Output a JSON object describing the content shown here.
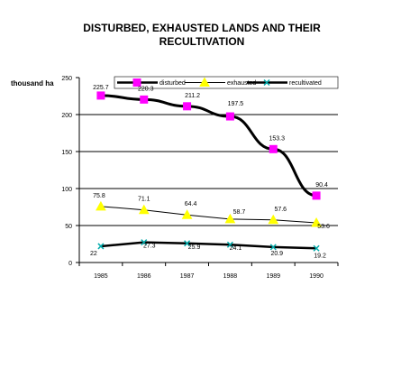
{
  "chart_data": {
    "type": "line",
    "title_lines": [
      "DISTURBED, EXHAUSTED LANDS AND THEIR",
      "RECULTIVATION"
    ],
    "ylabel": "thousand ha",
    "xlabel": "",
    "categories": [
      "1985",
      "1986",
      "1987",
      "1988",
      "1989",
      "1990"
    ],
    "ylim": [
      0,
      250
    ],
    "yticks": [
      "0",
      "50",
      "100",
      "150",
      "200",
      "250"
    ],
    "gridlines": [
      50,
      100,
      150,
      200
    ],
    "legend_position": "top",
    "series": [
      {
        "name": "disturbed",
        "values": [
          225.7,
          220.3,
          211.2,
          197.5,
          153.3,
          90.4
        ],
        "labels": [
          "225.7",
          "220.3",
          "211.2",
          "197.5",
          "153.3",
          "90.4"
        ],
        "color": "#000000",
        "marker_color": "#ff00ff",
        "marker": "square"
      },
      {
        "name": "exhausted",
        "values": [
          75.8,
          71.1,
          64.4,
          58.7,
          57.6,
          53.6
        ],
        "labels": [
          "75.8",
          "71.1",
          "64.4",
          "58.7",
          "57.6",
          "53.6"
        ],
        "color": "#000000",
        "marker_color": "#ffff00",
        "marker": "triangle"
      },
      {
        "name": "recultivated",
        "values": [
          22,
          27.3,
          25.9,
          24.1,
          20.9,
          19.2
        ],
        "labels": [
          "22",
          "27.3",
          "25.9",
          "24.1",
          "20.9",
          "19.2"
        ],
        "color": "#000000",
        "marker_color": "#00aaaa",
        "marker": "x"
      }
    ]
  }
}
